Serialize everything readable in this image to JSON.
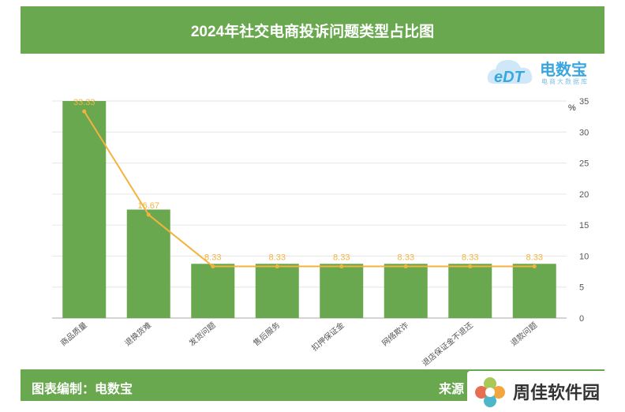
{
  "title": "2024年社交电商投诉问题类型占比图",
  "unit": "%",
  "footer": {
    "left": "图表编制：电数宝",
    "right": "来源"
  },
  "logo": {
    "brand": "电数宝",
    "sub": "电商大数据库",
    "mark": "eDT"
  },
  "watermark": {
    "text": "周佳软件园"
  },
  "colors": {
    "bar": "#69a84f",
    "line": "#f4b33f",
    "title_bg": "#69a84f"
  },
  "chart_data": {
    "type": "bar",
    "categories": [
      "商品质量",
      "退换货难",
      "发货问题",
      "售后服务",
      "扣押保证金",
      "网络欺诈",
      "退店保证金不退还",
      "退款问题"
    ],
    "series": [
      {
        "type": "bar",
        "values": [
          35,
          17.5,
          8.75,
          8.75,
          8.75,
          8.75,
          8.75,
          8.75
        ]
      },
      {
        "type": "line",
        "values": [
          33.33,
          16.67,
          8.33,
          8.33,
          8.33,
          8.33,
          8.33,
          8.33
        ],
        "labels": [
          "33.33",
          "16.67",
          "8.33",
          "8.33",
          "8.33",
          "8.33",
          "8.33",
          "8.33"
        ]
      }
    ],
    "y_axis": {
      "position": "right",
      "ylim": [
        0,
        35
      ],
      "ticks": [
        0,
        5,
        10,
        15,
        20,
        25,
        30,
        35
      ]
    },
    "grid": true
  }
}
